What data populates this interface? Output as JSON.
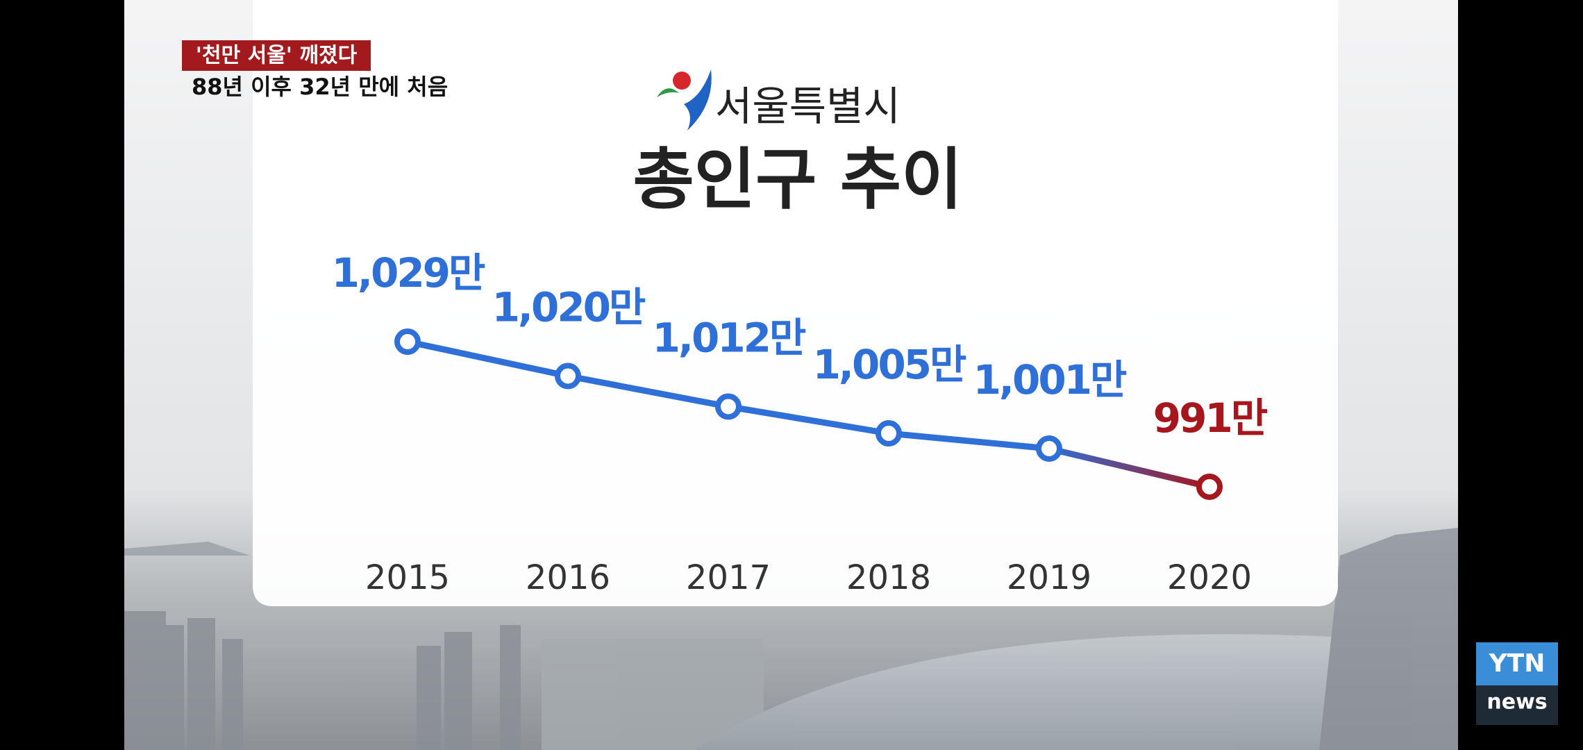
{
  "header": {
    "banner": "'천만 서울' 깨졌다",
    "subtitle": "88년 이후 32년 만에 처음"
  },
  "logo": {
    "text": "서울특별시"
  },
  "chart_data": {
    "type": "line",
    "title": "총인구 추이",
    "categories": [
      "2015",
      "2016",
      "2017",
      "2018",
      "2019",
      "2020"
    ],
    "values": [
      1029,
      1020,
      1012,
      1005,
      1001,
      991
    ],
    "value_labels": [
      "1,029만",
      "1,020만",
      "1,012만",
      "1,005만",
      "1,001만",
      "991만"
    ],
    "colors": [
      "#2e6fd8",
      "#2e6fd8",
      "#2e6fd8",
      "#2e6fd8",
      "#2e6fd8",
      "#a5161d"
    ]
  },
  "channel": {
    "name": "YTN",
    "sub": "news"
  }
}
